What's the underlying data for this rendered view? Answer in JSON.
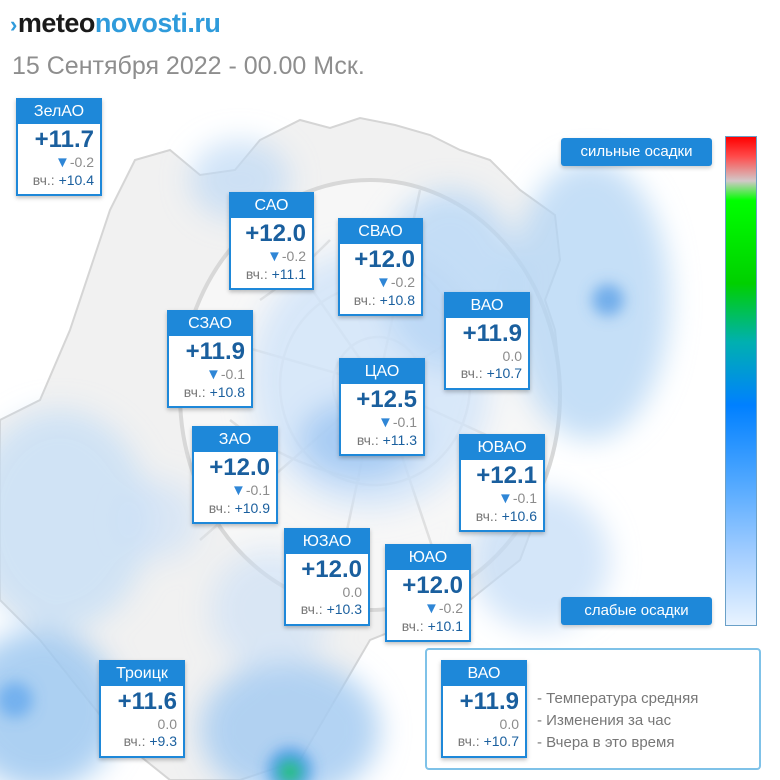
{
  "logo": {
    "mark": "›",
    "part1": "meteo",
    "part2": "novosti.ru"
  },
  "subtitle": "15 Сентября 2022 - 00.00 Мск.",
  "scale": {
    "strong_label": "сильные осадки",
    "weak_label": "слабые осадки"
  },
  "yesterday_prefix": "вч.:",
  "districts": [
    {
      "name": "ЗелАО",
      "temp": "+11.7",
      "change": "-0.2",
      "trend": "down",
      "yesterday": "+10.4"
    },
    {
      "name": "САО",
      "temp": "+12.0",
      "change": "-0.2",
      "trend": "down",
      "yesterday": "+11.1"
    },
    {
      "name": "СВАО",
      "temp": "+12.0",
      "change": "-0.2",
      "trend": "down",
      "yesterday": "+10.8"
    },
    {
      "name": "ВАО",
      "temp": "+11.9",
      "change": "0.0",
      "trend": "none",
      "yesterday": "+10.7"
    },
    {
      "name": "СЗАО",
      "temp": "+11.9",
      "change": "-0.1",
      "trend": "down",
      "yesterday": "+10.8"
    },
    {
      "name": "ЦАО",
      "temp": "+12.5",
      "change": "-0.1",
      "trend": "down",
      "yesterday": "+11.3"
    },
    {
      "name": "ЗАО",
      "temp": "+12.0",
      "change": "-0.1",
      "trend": "down",
      "yesterday": "+10.9"
    },
    {
      "name": "ЮВАО",
      "temp": "+12.1",
      "change": "-0.1",
      "trend": "down",
      "yesterday": "+10.6"
    },
    {
      "name": "ЮЗАО",
      "temp": "+12.0",
      "change": "0.0",
      "trend": "none",
      "yesterday": "+10.3"
    },
    {
      "name": "ЮАО",
      "temp": "+12.0",
      "change": "-0.2",
      "trend": "down",
      "yesterday": "+10.1"
    },
    {
      "name": "Троицк",
      "temp": "+11.6",
      "change": "0.0",
      "trend": "none",
      "yesterday": "+9.3"
    }
  ],
  "legend": {
    "sample": {
      "name": "ВАО",
      "temp": "+11.9",
      "change": "0.0",
      "yesterday": "+10.7"
    },
    "items": [
      "- Температура средняя",
      "- Изменения за час",
      "- Вчера в это время"
    ]
  }
}
